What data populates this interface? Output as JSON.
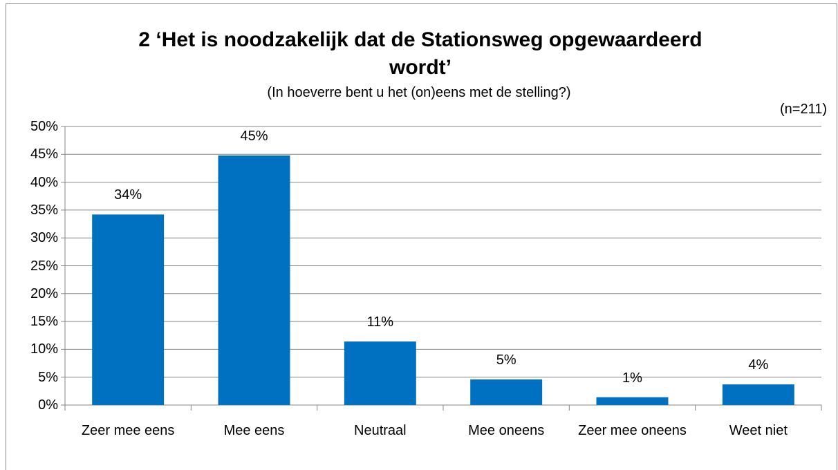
{
  "chart_data": {
    "type": "bar",
    "title": "2 ‘Het is noodzakelijk dat de Stationsweg opgewaardeerd wordt’",
    "subtitle": "(In hoeverre bent u het (on)eens met de stelling?)",
    "annotation": "(n=211)",
    "categories": [
      "Zeer mee eens",
      "Mee eens",
      "Neutraal",
      "Mee oneens",
      "Zeer mee oneens",
      "Weet niet"
    ],
    "values": [
      34.2,
      44.8,
      11.4,
      4.6,
      1.4,
      3.7
    ],
    "value_labels": [
      "34%",
      "45%",
      "11%",
      "5%",
      "1%",
      "4%"
    ],
    "color": "#0070c0",
    "ylim": [
      0,
      50
    ],
    "yticks": [
      {
        "value": 0,
        "label": "0%"
      },
      {
        "value": 5,
        "label": "5%"
      },
      {
        "value": 10,
        "label": "10%"
      },
      {
        "value": 15,
        "label": "15%"
      },
      {
        "value": 20,
        "label": "20%"
      },
      {
        "value": 25,
        "label": "25%"
      },
      {
        "value": 30,
        "label": "30%"
      },
      {
        "value": 35,
        "label": "35%"
      },
      {
        "value": 40,
        "label": "40%"
      },
      {
        "value": 45,
        "label": "45%"
      },
      {
        "value": 50,
        "label": "50%"
      }
    ],
    "grid": true
  }
}
